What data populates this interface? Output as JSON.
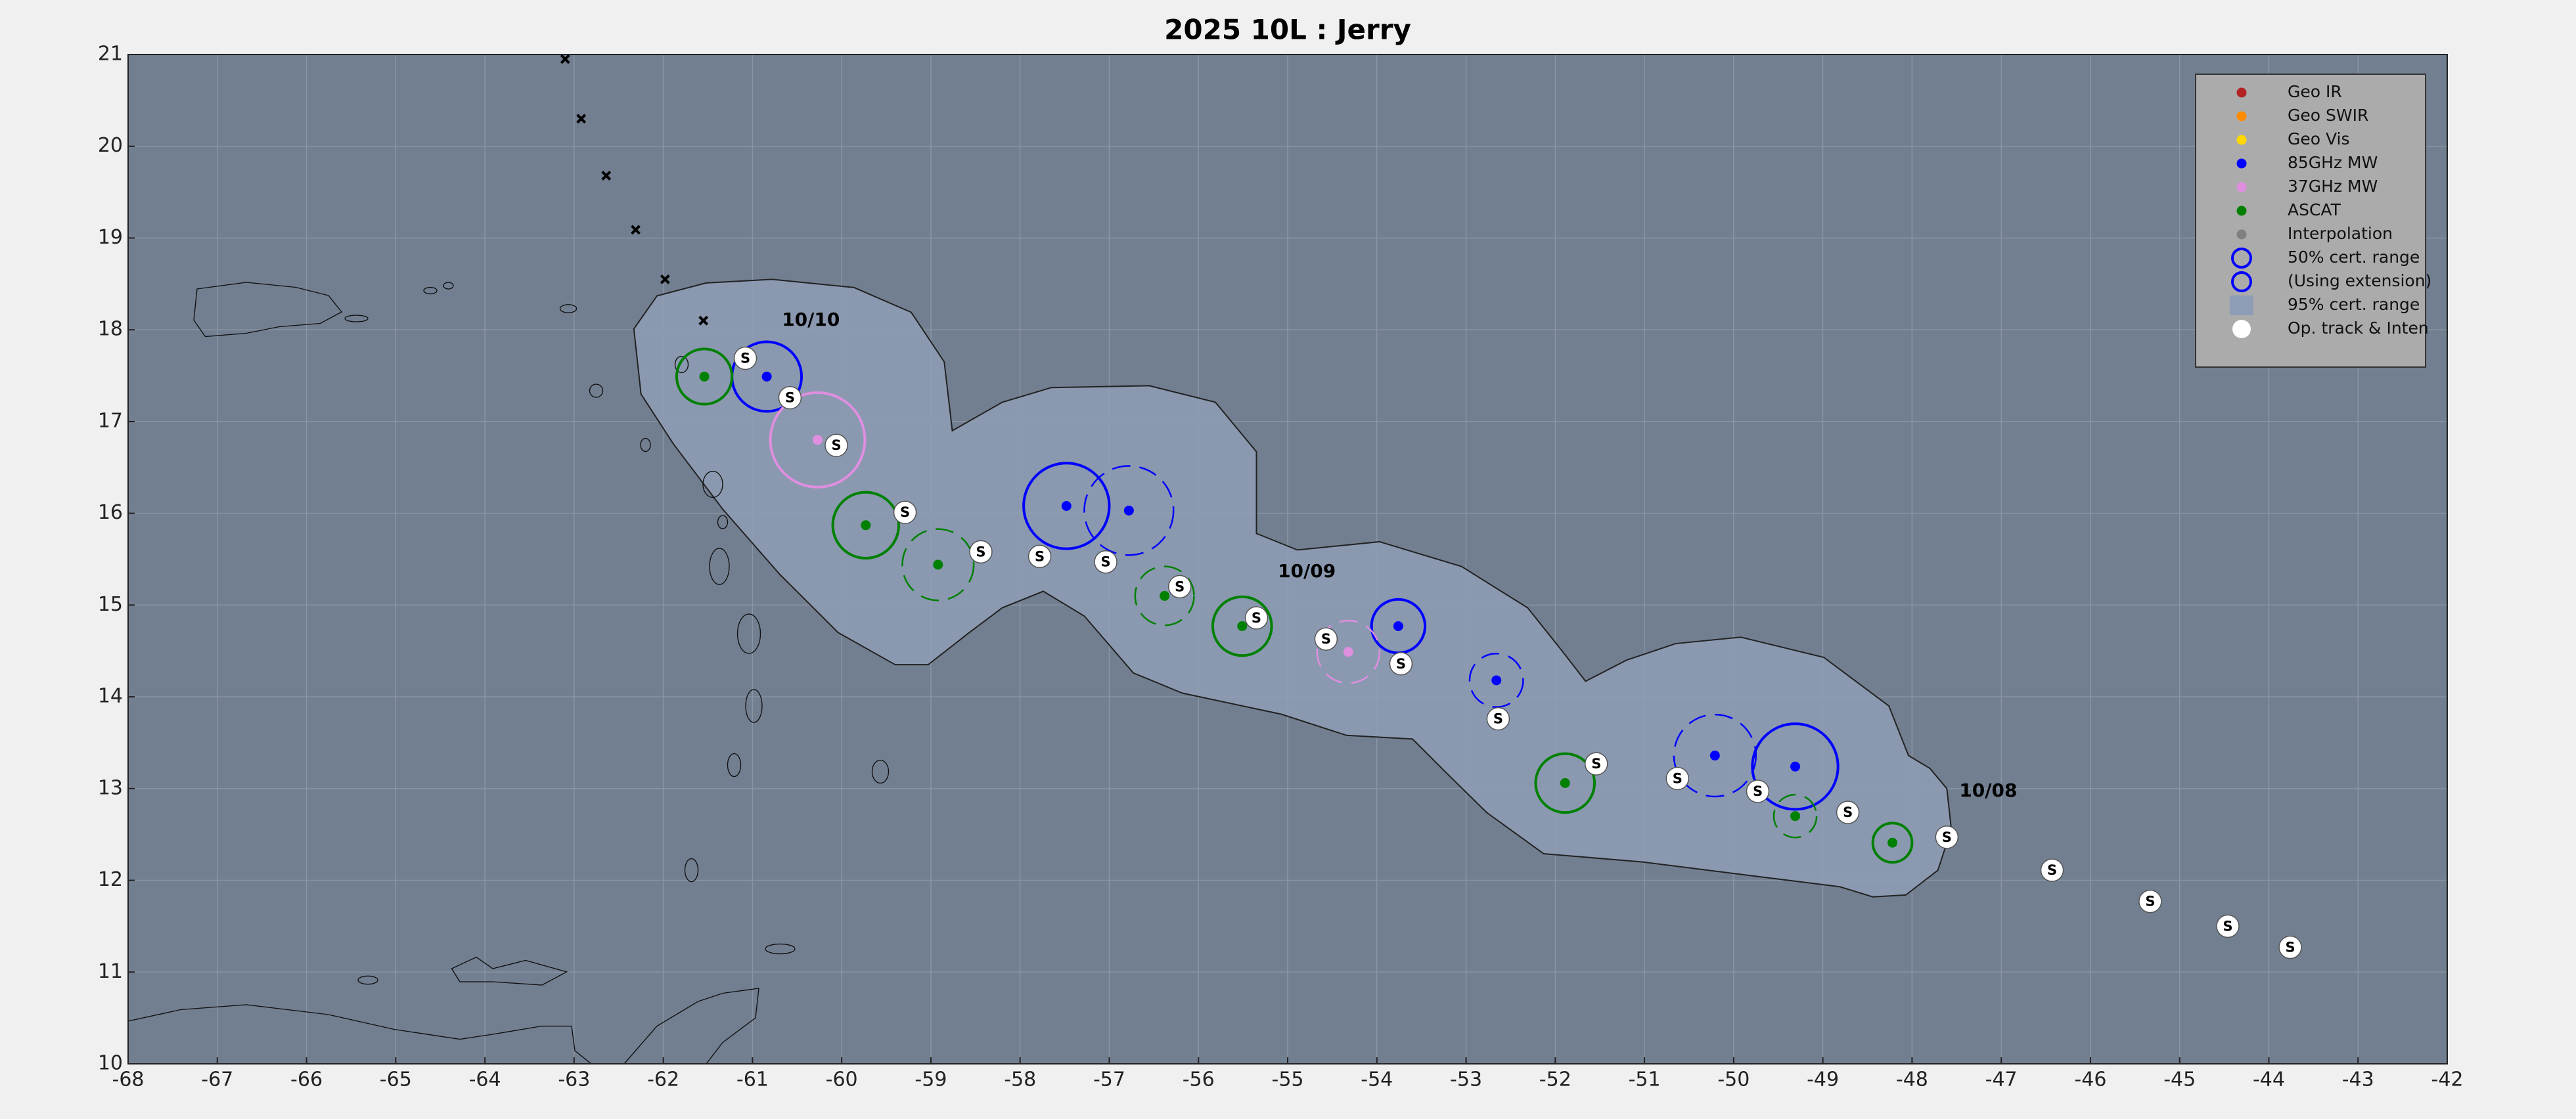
{
  "chart_data": {
    "type": "scatter",
    "title": "2025  10L :  Jerry",
    "xlim": [
      -68,
      -42
    ],
    "ylim": [
      10,
      21
    ],
    "xticks": [
      -68,
      -67,
      -66,
      -65,
      -64,
      -63,
      -62,
      -61,
      -60,
      -59,
      -58,
      -57,
      -56,
      -55,
      -54,
      -53,
      -52,
      -51,
      -50,
      -49,
      -48,
      -47,
      -46,
      -45,
      -44,
      -43,
      -42
    ],
    "yticks": [
      10,
      11,
      12,
      13,
      14,
      15,
      16,
      17,
      18,
      19,
      20,
      21
    ],
    "grid": true,
    "legend": "upper right",
    "background": "#727f91",
    "series": [
      {
        "name": "Geo IR",
        "color": "#b22222",
        "symbol": "dot",
        "x": [],
        "y": []
      },
      {
        "name": "Geo SWIR",
        "color": "#ff8c00",
        "symbol": "dot",
        "x": [],
        "y": []
      },
      {
        "name": "Geo Vis",
        "color": "#ffd700",
        "symbol": "dot",
        "x": [],
        "y": []
      },
      {
        "name": "85GHz MW",
        "color": "#0000ff",
        "symbol": "dot",
        "x": [
          -60.84,
          -57.48,
          -56.78,
          -53.76,
          -52.66,
          -50.21,
          -49.31
        ],
        "y": [
          17.49,
          16.08,
          16.03,
          14.77,
          14.18,
          13.36,
          13.24
        ],
        "radius": [
          0.39,
          0.48,
          0.5,
          0.3,
          0.3,
          0.46,
          0.48
        ],
        "dashed": [
          false,
          false,
          true,
          false,
          true,
          true,
          false
        ]
      },
      {
        "name": "37GHz MW",
        "color": "#e08ee0",
        "symbol": "dot",
        "x": [
          -60.27,
          -54.32
        ],
        "y": [
          16.8,
          14.49
        ],
        "radius": [
          0.53,
          0.35
        ],
        "dashed": [
          false,
          true
        ]
      },
      {
        "name": "ASCAT",
        "color": "#008000",
        "symbol": "dot",
        "x": [
          -61.54,
          -59.73,
          -58.92,
          -56.38,
          -55.51,
          -51.89,
          -49.31,
          -48.22
        ],
        "y": [
          17.49,
          15.87,
          15.44,
          15.1,
          14.77,
          13.06,
          12.7,
          12.41
        ],
        "radius": [
          0.31,
          0.37,
          0.4,
          0.33,
          0.33,
          0.33,
          0.24,
          0.22
        ],
        "dashed": [
          false,
          false,
          true,
          true,
          false,
          false,
          true,
          false
        ]
      },
      {
        "name": "Interpolation",
        "color": "#808080",
        "symbol": "dot",
        "x": [],
        "y": []
      },
      {
        "name": "50% cert. range",
        "color": "#0000ff",
        "symbol": "ring",
        "x": [],
        "y": []
      },
      {
        "name": "(Using extension)",
        "color": "#0000ff",
        "symbol": "ring",
        "x": [],
        "y": []
      },
      {
        "name": "95% cert. range",
        "color": "#8e9db5",
        "symbol": "patch",
        "x": [
          -62.33,
          -62.07,
          -61.52,
          -60.78,
          -59.86,
          -59.22,
          -58.85,
          -58.76,
          -58.2,
          -57.65,
          -56.55,
          -55.81,
          -55.35,
          -55.35,
          -54.89,
          -53.97,
          -53.05,
          -52.31,
          -51.94,
          -51.66,
          -51.2,
          -50.65,
          -49.92,
          -48.99,
          -48.26,
          -48.04,
          -47.8,
          -47.61,
          -47.56,
          -47.71,
          -48.07,
          -48.44,
          -48.81,
          -49.55,
          -51.02,
          -52.13,
          -52.77,
          -53.23,
          -53.6,
          -54.34,
          -55.07,
          -56.18,
          -56.73,
          -57.28,
          -57.74,
          -58.2,
          -58.57,
          -59.03,
          -59.4,
          -60.04,
          -60.69,
          -61.33,
          -61.89,
          -62.25
        ],
        "y": [
          18.01,
          18.37,
          18.51,
          18.55,
          18.46,
          18.19,
          17.65,
          16.9,
          17.21,
          17.37,
          17.39,
          17.21,
          16.67,
          15.78,
          15.6,
          15.69,
          15.42,
          14.97,
          14.52,
          14.17,
          14.4,
          14.58,
          14.65,
          14.43,
          13.9,
          13.36,
          13.22,
          13.0,
          12.56,
          12.11,
          11.84,
          11.82,
          11.93,
          12.02,
          12.2,
          12.29,
          12.74,
          13.18,
          13.54,
          13.58,
          13.81,
          14.04,
          14.26,
          14.88,
          15.15,
          14.97,
          14.7,
          14.35,
          14.35,
          14.7,
          15.33,
          16.04,
          16.76,
          17.3
        ]
      },
      {
        "name": "Op. track & Inten",
        "color": "#ffffff",
        "symbol": "track",
        "marker_label": "S",
        "x": [
          -61.08,
          -60.58,
          -60.06,
          -59.29,
          -58.44,
          -57.78,
          -57.04,
          -56.21,
          -55.35,
          -54.57,
          -53.73,
          -52.64,
          -51.54,
          -50.63,
          -49.73,
          -48.72,
          -47.61,
          -46.43,
          -45.33,
          -44.46,
          -43.76
        ],
        "y": [
          17.69,
          17.26,
          16.74,
          16.01,
          15.58,
          15.53,
          15.47,
          15.2,
          14.86,
          14.63,
          14.36,
          13.76,
          13.27,
          13.11,
          12.97,
          12.74,
          12.47,
          12.11,
          11.77,
          11.5,
          11.27
        ]
      }
    ],
    "forecast_track": {
      "color": "#000000",
      "x": [
        -63.1,
        -62.92,
        -62.64,
        -62.31,
        -61.98,
        -61.55
      ],
      "y": [
        20.95,
        20.3,
        19.68,
        19.09,
        18.55,
        18.1
      ]
    },
    "annotations": [
      {
        "text": "10/10",
        "x": -60.67,
        "y": 18.1
      },
      {
        "text": "10/09",
        "x": -55.11,
        "y": 15.36
      },
      {
        "text": "10/08",
        "x": -47.47,
        "y": 12.97
      }
    ]
  }
}
